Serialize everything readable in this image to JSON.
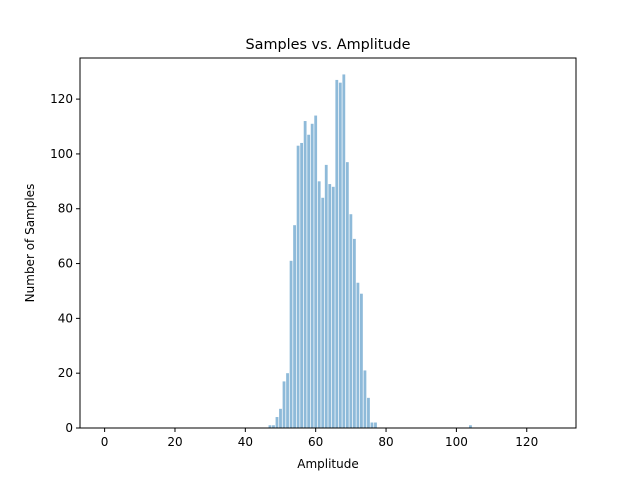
{
  "chart_data": {
    "type": "bar",
    "title": "Samples vs. Amplitude",
    "xlabel": "Amplitude",
    "ylabel": "Number of Samples",
    "xlim": [
      -7,
      134
    ],
    "ylim": [
      0,
      135
    ],
    "xticks": [
      0,
      20,
      40,
      60,
      80,
      100,
      120
    ],
    "yticks": [
      0,
      20,
      40,
      60,
      80,
      100,
      120
    ],
    "grid": false,
    "bar_color": "#8ebad9",
    "x": [
      47,
      48,
      49,
      50,
      51,
      52,
      53,
      54,
      55,
      56,
      57,
      58,
      59,
      60,
      61,
      62,
      63,
      64,
      65,
      66,
      67,
      68,
      69,
      70,
      71,
      72,
      73,
      74,
      75,
      76,
      77,
      104
    ],
    "values": [
      1,
      1,
      4,
      7,
      17,
      20,
      61,
      74,
      103,
      104,
      112,
      107,
      111,
      114,
      90,
      84,
      96,
      89,
      88,
      127,
      126,
      129,
      97,
      78,
      69,
      53,
      49,
      21,
      11,
      2,
      2,
      1
    ]
  }
}
